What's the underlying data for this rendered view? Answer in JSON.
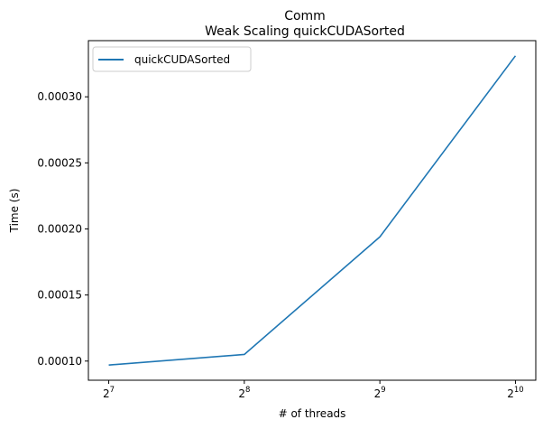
{
  "chart_data": {
    "type": "line",
    "title": "Comm",
    "subtitle": "Weak Scaling quickCUDASorted",
    "xlabel": "# of threads",
    "ylabel": "Time (s)",
    "x_scale": "log2",
    "x": [
      128,
      256,
      512,
      1024
    ],
    "x_tick_labels": [
      {
        "base": "2",
        "exp": "7"
      },
      {
        "base": "2",
        "exp": "8"
      },
      {
        "base": "2",
        "exp": "9"
      },
      {
        "base": "2",
        "exp": "10"
      }
    ],
    "y_ticks": [
      0.0001,
      0.00015,
      0.0002,
      0.00025,
      0.0003
    ],
    "y_tick_labels": [
      "0.00010",
      "0.00015",
      "0.00020",
      "0.00025",
      "0.00030"
    ],
    "ylim": [
      8.55e-05,
      0.0003425
    ],
    "grid": false,
    "legend_position": "top-left",
    "series": [
      {
        "name": "quickCUDASorted",
        "color": "#1f77b4",
        "values": [
          9.7e-05,
          0.000105,
          0.000194,
          0.000331
        ]
      }
    ]
  }
}
